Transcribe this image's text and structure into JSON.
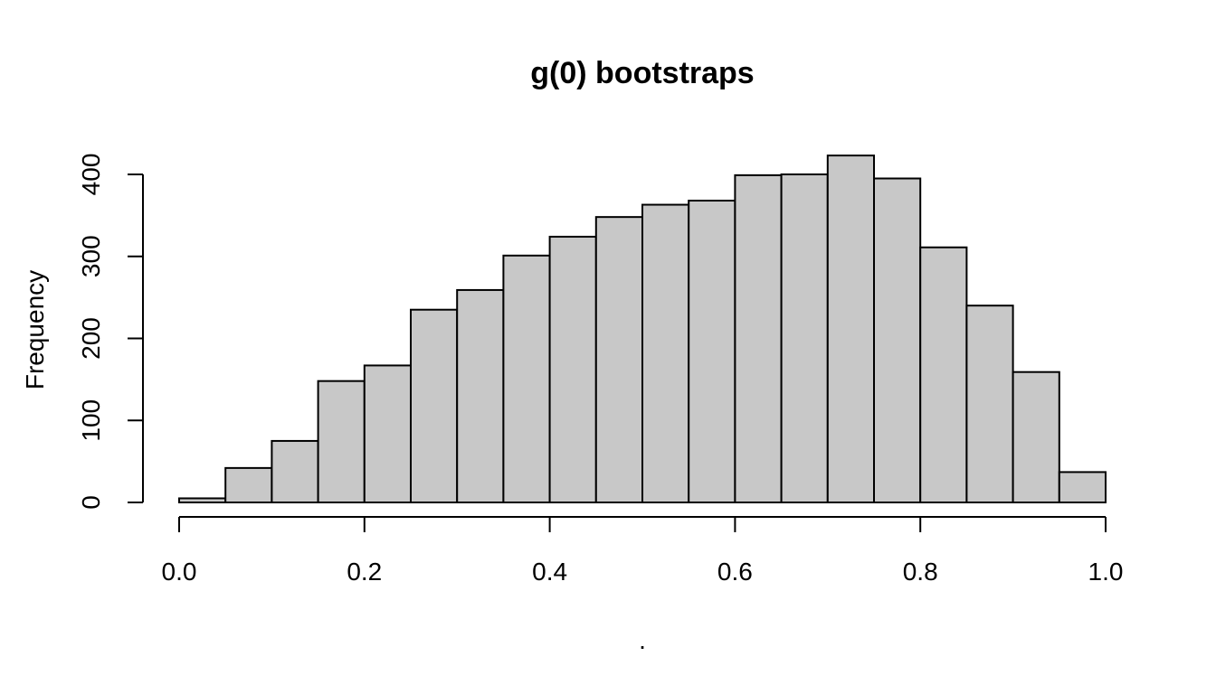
{
  "chart_data": {
    "type": "bar",
    "title": "g(0) bootstraps",
    "xlabel": ".",
    "ylabel": "Frequency",
    "histogram": true,
    "bin_edges": [
      0.0,
      0.05,
      0.1,
      0.15,
      0.2,
      0.25,
      0.3,
      0.35,
      0.4,
      0.45,
      0.5,
      0.55,
      0.6,
      0.65,
      0.7,
      0.75,
      0.8,
      0.85,
      0.9,
      0.95,
      1.0
    ],
    "values": [
      5,
      42,
      75,
      148,
      167,
      235,
      259,
      301,
      324,
      348,
      363,
      368,
      399,
      400,
      423,
      395,
      311,
      240,
      159,
      37
    ],
    "xlim": [
      0,
      1
    ],
    "ylim": [
      0,
      423
    ],
    "x_ticks": [
      0.0,
      0.2,
      0.4,
      0.6,
      0.8,
      1.0
    ],
    "x_tick_labels": [
      "0.0",
      "0.2",
      "0.4",
      "0.6",
      "0.8",
      "1.0"
    ],
    "y_ticks": [
      0,
      100,
      200,
      300,
      400
    ],
    "y_tick_labels": [
      "0",
      "100",
      "200",
      "300",
      "400"
    ],
    "grid": false,
    "bar_fill": "#c8c8c8",
    "bar_stroke": "#000000"
  }
}
